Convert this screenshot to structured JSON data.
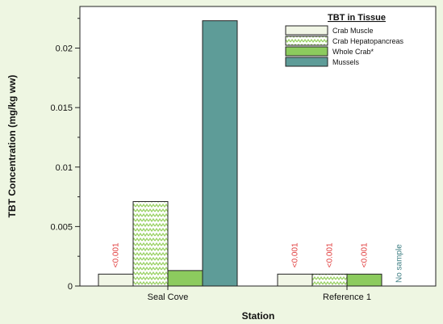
{
  "chart_data": {
    "type": "bar",
    "xlabel": "Station",
    "ylabel": "TBT Concentration (mg/kg ww)",
    "ylim": [
      0,
      0.0235
    ],
    "yticks": [
      "0",
      "0.005",
      "0.01",
      "0.015",
      "0.02"
    ],
    "ytick_values": [
      0,
      0.005,
      0.01,
      0.015,
      0.02
    ],
    "categories": [
      "Seal Cove",
      "Reference 1"
    ],
    "legend": {
      "title": "TBT in Tissue",
      "position": "top-right"
    },
    "series": [
      {
        "name": "Crab Muscle",
        "values": [
          0.001,
          0.001
        ],
        "color": "#f1f6e6",
        "pattern": "solid",
        "labels": [
          "<0.001",
          "<0.001"
        ]
      },
      {
        "name": "Crab Hepatopancreas",
        "values": [
          0.0071,
          0.001
        ],
        "color": "#9bd266",
        "pattern": "zigzag",
        "labels": [
          "",
          "<0.001"
        ]
      },
      {
        "name": "Whole Crab*",
        "values": [
          0.0013,
          0.001
        ],
        "color": "#8ccb5e",
        "pattern": "solid",
        "labels": [
          "",
          "<0.001"
        ]
      },
      {
        "name": "Mussels",
        "values": [
          0.0223,
          null
        ],
        "color": "#5e9c98",
        "pattern": "solid",
        "labels": [
          "",
          "No sample"
        ]
      }
    ],
    "annotation_colors": {
      "below_detection": "#e03a3a",
      "no_sample": "#3f7f84"
    }
  }
}
